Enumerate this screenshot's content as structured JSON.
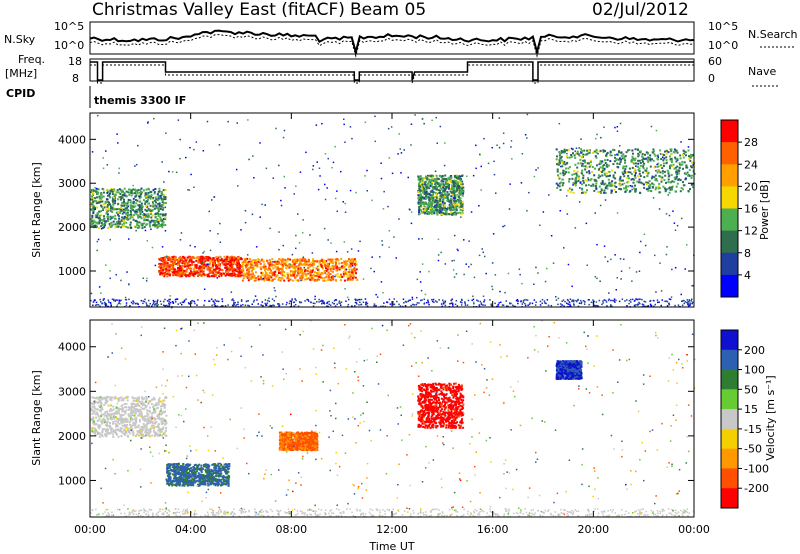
{
  "header": {
    "title": "Christmas Valley East (fitACF)",
    "beam": "Beam 05",
    "date": "02/Jul/2012"
  },
  "noise_panel": {
    "left_label": "N.Sky",
    "right_label": "N.Search",
    "left_ticks": [
      "10^5",
      "10^0"
    ],
    "right_ticks": [
      "10^5",
      "10^0"
    ]
  },
  "freq_panel": {
    "left_label_1": "Freq.",
    "left_label_2": "[MHz]",
    "right_label": "Nave",
    "left_ticks": [
      "18",
      "8"
    ],
    "right_ticks": [
      "60",
      "0"
    ]
  },
  "cpid": {
    "label": "CPID",
    "text": "themis 3300 IF"
  },
  "colors": {
    "power_scale": [
      "#0000ff",
      "#1f3fa0",
      "#2e6e4f",
      "#4caf50",
      "#f5d800",
      "#ffa000",
      "#ff6000",
      "#ff0000"
    ],
    "velocity_scale": [
      "#1010d0",
      "#2d60b0",
      "#2e7d32",
      "#66cc33",
      "#c8c8c8",
      "#f4d000",
      "#ff9900",
      "#ff5000",
      "#ff0000"
    ]
  },
  "chart_data": [
    {
      "type": "heatmap",
      "name": "power",
      "ylabel": "Slant Range [km]",
      "ylim": [
        180,
        4600
      ],
      "y_ticks": [
        "1000",
        "2000",
        "3000",
        "4000"
      ],
      "x_ticks": [
        "00:00",
        "04:00",
        "08:00",
        "12:00",
        "16:00",
        "20:00",
        "00:00"
      ],
      "colorbar": {
        "label": "Power [dB]",
        "ticks": [
          "28",
          "24",
          "20",
          "16",
          "12",
          "8",
          "4"
        ],
        "range": [
          0,
          32
        ]
      },
      "echo_regions": [
        {
          "t_start": 0.0,
          "t_end": 3.0,
          "r_low": 2000,
          "r_high": 2900,
          "level": 12
        },
        {
          "t_start": 2.7,
          "t_end": 6.0,
          "r_low": 900,
          "r_high": 1350,
          "level": 28
        },
        {
          "t_start": 6.0,
          "t_end": 10.6,
          "r_low": 800,
          "r_high": 1300,
          "level": 24
        },
        {
          "t_start": 13.0,
          "t_end": 14.8,
          "r_low": 2300,
          "r_high": 3200,
          "level": 12
        },
        {
          "t_start": 18.5,
          "t_end": 24.0,
          "r_low": 2800,
          "r_high": 3800,
          "level": 12
        }
      ]
    },
    {
      "type": "heatmap",
      "name": "velocity",
      "ylabel": "Slant Range [km]",
      "ylim": [
        180,
        4600
      ],
      "y_ticks": [
        "1000",
        "2000",
        "3000",
        "4000"
      ],
      "x_ticks": [
        "00:00",
        "04:00",
        "08:00",
        "12:00",
        "16:00",
        "20:00",
        "00:00"
      ],
      "xlabel": "Time UT",
      "colorbar": {
        "label": "Velocity [m s⁻¹]",
        "ticks": [
          "200",
          "100",
          "50",
          "15",
          "-15",
          "-50",
          "-100",
          "-200"
        ],
        "range": [
          -250,
          250
        ]
      },
      "echo_regions": [
        {
          "t_start": 0.0,
          "t_end": 3.0,
          "r_low": 2000,
          "r_high": 2900,
          "level": 0
        },
        {
          "t_start": 3.0,
          "t_end": 5.5,
          "r_low": 900,
          "r_high": 1400,
          "level": 150
        },
        {
          "t_start": 7.5,
          "t_end": 9.0,
          "r_low": 1700,
          "r_high": 2100,
          "level": -150
        },
        {
          "t_start": 13.0,
          "t_end": 14.8,
          "r_low": 2200,
          "r_high": 3200,
          "level": -220
        },
        {
          "t_start": 18.5,
          "t_end": 19.5,
          "r_low": 3300,
          "r_high": 3700,
          "level": 200
        }
      ]
    }
  ]
}
